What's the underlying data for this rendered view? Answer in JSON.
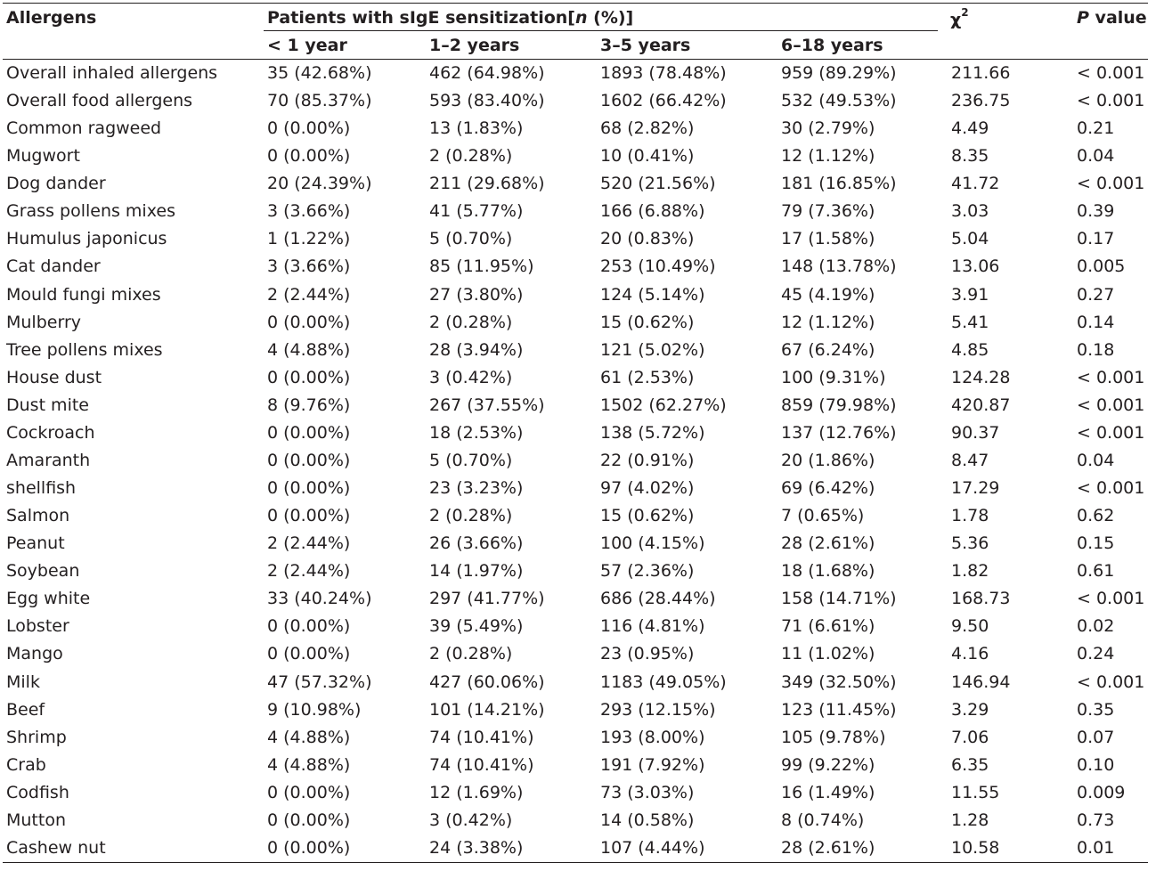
{
  "header": {
    "allergens": "Allergens",
    "group_prefix": "Patients with sIgE sensitization[",
    "group_italic": "n",
    "group_suffix": " (%)]",
    "age_groups": [
      "< 1 year",
      "1–2 years",
      "3–5 years",
      "6–18 years"
    ],
    "chi_symbol": "χ",
    "chi_sup": "2",
    "p_italic": "P",
    "p_rest": " value"
  },
  "rows": [
    [
      "Overall inhaled allergens",
      "35 (42.68%)",
      "462 (64.98%)",
      "1893 (78.48%)",
      "959 (89.29%)",
      "211.66",
      "< 0.001"
    ],
    [
      "Overall food allergens",
      "70 (85.37%)",
      "593 (83.40%)",
      "1602 (66.42%)",
      "532 (49.53%)",
      "236.75",
      "< 0.001"
    ],
    [
      "Common ragweed",
      "0 (0.00%)",
      "13 (1.83%)",
      "68 (2.82%)",
      "30 (2.79%)",
      "4.49",
      "0.21"
    ],
    [
      "Mugwort",
      "0 (0.00%)",
      "2 (0.28%)",
      "10 (0.41%)",
      "12 (1.12%)",
      "8.35",
      "0.04"
    ],
    [
      "Dog dander",
      "20 (24.39%)",
      "211 (29.68%)",
      "520 (21.56%)",
      "181 (16.85%)",
      "41.72",
      "< 0.001"
    ],
    [
      "Grass pollens mixes",
      "3 (3.66%)",
      "41 (5.77%)",
      "166 (6.88%)",
      "79 (7.36%)",
      "3.03",
      "0.39"
    ],
    [
      "Humulus japonicus",
      "1 (1.22%)",
      "5 (0.70%)",
      "20 (0.83%)",
      "17 (1.58%)",
      "5.04",
      "0.17"
    ],
    [
      "Cat dander",
      "3 (3.66%)",
      "85 (11.95%)",
      "253 (10.49%)",
      "148 (13.78%)",
      "13.06",
      "0.005"
    ],
    [
      "Mould fungi mixes",
      "2 (2.44%)",
      "27 (3.80%)",
      "124 (5.14%)",
      "45 (4.19%)",
      "3.91",
      "0.27"
    ],
    [
      "Mulberry",
      "0 (0.00%)",
      "2 (0.28%)",
      "15 (0.62%)",
      "12 (1.12%)",
      "5.41",
      "0.14"
    ],
    [
      "Tree pollens mixes",
      "4 (4.88%)",
      "28 (3.94%)",
      "121 (5.02%)",
      "67 (6.24%)",
      "4.85",
      "0.18"
    ],
    [
      "House dust",
      "0 (0.00%)",
      "3 (0.42%)",
      "61 (2.53%)",
      "100 (9.31%)",
      "124.28",
      "< 0.001"
    ],
    [
      "Dust mite",
      "8 (9.76%)",
      "267 (37.55%)",
      "1502 (62.27%)",
      "859 (79.98%)",
      "420.87",
      "< 0.001"
    ],
    [
      "Cockroach",
      "0 (0.00%)",
      "18 (2.53%)",
      "138 (5.72%)",
      "137 (12.76%)",
      "90.37",
      "< 0.001"
    ],
    [
      "Amaranth",
      "0 (0.00%)",
      "5 (0.70%)",
      "22 (0.91%)",
      "20 (1.86%)",
      "8.47",
      "0.04"
    ],
    [
      "shellfish",
      "0 (0.00%)",
      "23 (3.23%)",
      "97 (4.02%)",
      "69 (6.42%)",
      "17.29",
      "< 0.001"
    ],
    [
      "Salmon",
      "0 (0.00%)",
      "2 (0.28%)",
      "15 (0.62%)",
      "7 (0.65%)",
      "1.78",
      "0.62"
    ],
    [
      "Peanut",
      "2 (2.44%)",
      "26 (3.66%)",
      "100 (4.15%)",
      "28 (2.61%)",
      "5.36",
      "0.15"
    ],
    [
      "Soybean",
      "2 (2.44%)",
      "14 (1.97%)",
      "57 (2.36%)",
      "18 (1.68%)",
      "1.82",
      "0.61"
    ],
    [
      "Egg white",
      "33 (40.24%)",
      "297 (41.77%)",
      "686 (28.44%)",
      "158 (14.71%)",
      "168.73",
      "< 0.001"
    ],
    [
      "Lobster",
      "0 (0.00%)",
      "39 (5.49%)",
      "116 (4.81%)",
      "71 (6.61%)",
      "9.50",
      "0.02"
    ],
    [
      "Mango",
      "0 (0.00%)",
      "2 (0.28%)",
      "23 (0.95%)",
      "11 (1.02%)",
      "4.16",
      "0.24"
    ],
    [
      "Milk",
      "47 (57.32%)",
      "427 (60.06%)",
      "1183 (49.05%)",
      "349 (32.50%)",
      "146.94",
      "< 0.001"
    ],
    [
      "Beef",
      "9 (10.98%)",
      "101 (14.21%)",
      "293 (12.15%)",
      "123 (11.45%)",
      "3.29",
      "0.35"
    ],
    [
      "Shrimp",
      "4 (4.88%)",
      "74 (10.41%)",
      "193 (8.00%)",
      "105 (9.78%)",
      "7.06",
      "0.07"
    ],
    [
      "Crab",
      "4 (4.88%)",
      "74 (10.41%)",
      "191 (7.92%)",
      "99 (9.22%)",
      "6.35",
      "0.10"
    ],
    [
      "Codfish",
      "0 (0.00%)",
      "12 (1.69%)",
      "73 (3.03%)",
      "16 (1.49%)",
      "11.55",
      "0.009"
    ],
    [
      "Mutton",
      "0 (0.00%)",
      "3 (0.42%)",
      "14 (0.58%)",
      "8 (0.74%)",
      "1.28",
      "0.73"
    ],
    [
      "Cashew nut",
      "0 (0.00%)",
      "24 (3.38%)",
      "107 (4.44%)",
      "28 (2.61%)",
      "10.58",
      "0.01"
    ]
  ]
}
